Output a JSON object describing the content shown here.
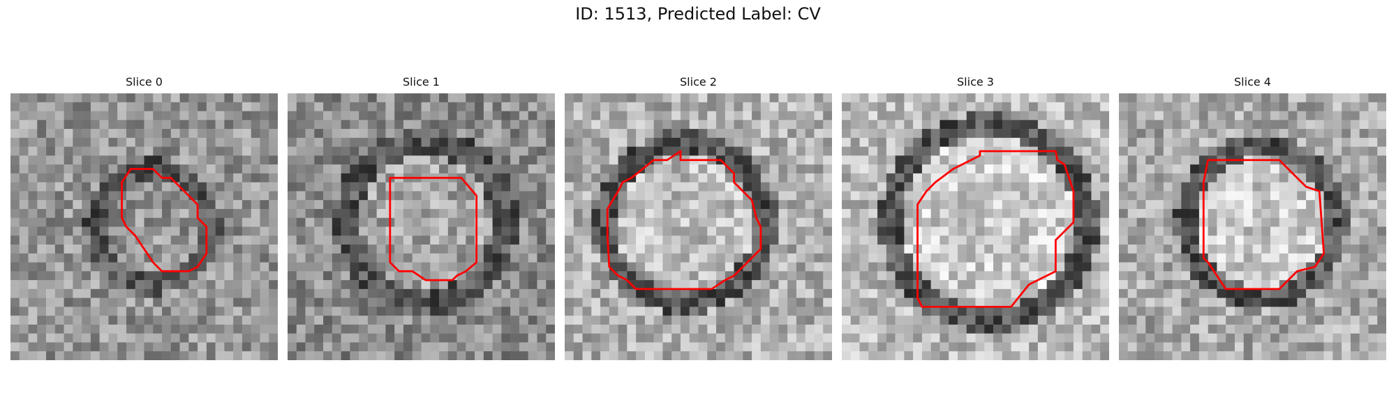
{
  "figure": {
    "title": "ID: 1513, Predicted Label: CV",
    "contour_color": "#ff0000",
    "colormap": "grayscale"
  },
  "slices": [
    {
      "label": "Slice 0"
    },
    {
      "label": "Slice 1"
    },
    {
      "label": "Slice 2"
    },
    {
      "label": "Slice 3"
    },
    {
      "label": "Slice 4"
    }
  ]
}
